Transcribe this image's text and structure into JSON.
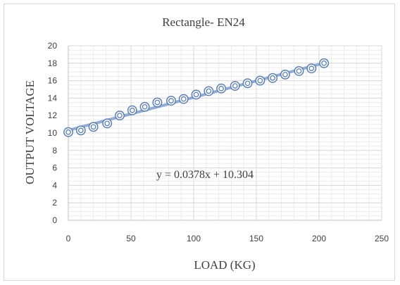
{
  "chart_data": {
    "type": "scatter",
    "title": "Rectangle- EN24",
    "xlabel": "LOAD (KG)",
    "ylabel": "OUTPUT VOLTAGE",
    "xlim": [
      0,
      250
    ],
    "ylim": [
      0,
      20
    ],
    "xticks": [
      0,
      50,
      100,
      150,
      200,
      250
    ],
    "yticks": [
      0,
      2,
      4,
      6,
      8,
      10,
      12,
      14,
      16,
      18,
      20
    ],
    "grid": true,
    "marker": "circle",
    "colors": {
      "series": "#5b7fb3",
      "trendline": "#7f9fcf",
      "grid": "#d9d9d9",
      "axis": "#bfbfbf"
    },
    "series": [
      {
        "x": [
          0,
          10,
          20,
          31,
          41,
          51,
          61,
          71,
          82,
          92,
          102,
          112,
          122,
          133,
          143,
          153,
          163,
          173,
          184,
          194,
          204
        ],
        "y": [
          10.1,
          10.3,
          10.7,
          11.1,
          12.0,
          12.6,
          13.0,
          13.5,
          13.7,
          13.9,
          14.4,
          14.8,
          15.1,
          15.4,
          15.7,
          16.0,
          16.3,
          16.7,
          17.1,
          17.4,
          18.0
        ]
      }
    ],
    "trendline": {
      "type": "linear",
      "slope": 0.0378,
      "intercept": 10.304,
      "x_range": [
        0,
        204
      ],
      "equation_label": "y = 0.0378x + 10.304"
    }
  }
}
